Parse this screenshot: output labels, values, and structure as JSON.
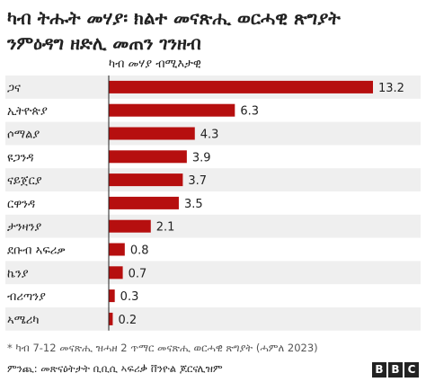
{
  "title": "ካብ ትሑት መሃያ፡ ክልተ መናጽሒ ወርሓዊ ጽግያት\nንምዕዳግ ዘድሊ መጠን ገንዘብ",
  "subtitle": "ካብ መሃያ ብሚእታዊ",
  "footnote": "* ካብ 7-12 መናጽሒ ዝሓዘ 2 ጥማር መናጽሒ ወርሓዊ ጽግያት (ሓምለ 2023)",
  "source": "ምንጪ: መጽናዕትታት ቢቢሲ ኣፍሪቃ ቨንዮል ጆርናሊዝም",
  "logo": [
    "B",
    "B",
    "C"
  ],
  "colors": {
    "bar": "#b60f0f",
    "stripe": "#efefef",
    "axis": "#222222"
  },
  "chart_data": {
    "type": "bar",
    "orientation": "horizontal",
    "categories": [
      "ጋና",
      "ኢትዮጵያ",
      "ሶማልያ",
      "ዩጋንዳ",
      "ናይጀርያ",
      "ርዋንዳ",
      "ታንዛንያ",
      "ደቡብ ኣፍሪቃ",
      "ኬንያ",
      "ብሪጣንያ",
      "ኣሜሪካ"
    ],
    "values": [
      13.2,
      6.3,
      4.3,
      3.9,
      3.7,
      3.5,
      2.1,
      0.8,
      0.7,
      0.3,
      0.2
    ],
    "data_labels": [
      "13.2",
      "6.3",
      "4.3",
      "3.9",
      "3.7",
      "3.5",
      "2.1",
      "0.8",
      "0.7",
      "0.3",
      "0.2"
    ],
    "title": "ካብ ትሑት መሃያ፡ ክልተ መናጽሒ ወርሓዊ ጽግያት ንምዕዳግ ዘድሊ መጠን ገንዘብ",
    "xlabel": "ካብ መሃያ ብሚእታዊ",
    "ylabel": "",
    "xlim": [
      0,
      13.2
    ],
    "grid": false
  }
}
